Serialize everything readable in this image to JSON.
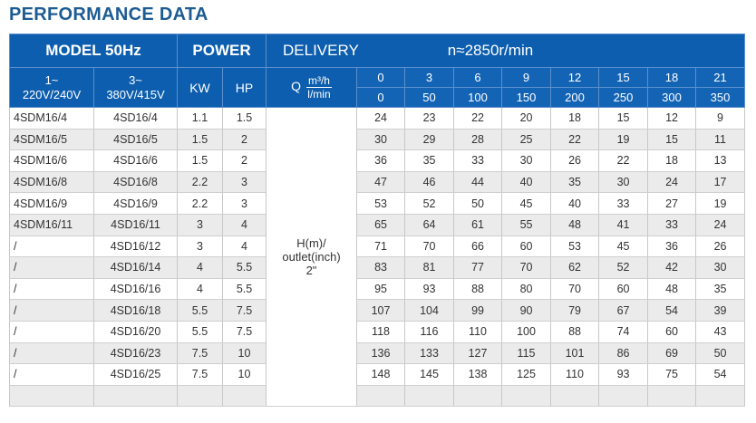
{
  "title": "PERFORMANCE DATA",
  "header": {
    "model": "MODEL 50Hz",
    "power": "POWER",
    "delivery": "DELIVERY",
    "speed": "n≈2850r/min",
    "single_phase_1": "1~",
    "single_phase_2": "220V/240V",
    "three_phase_1": "3~",
    "three_phase_2": "380V/415V",
    "kw": "KW",
    "hp": "HP",
    "q": "Q",
    "unit_m3h": "m³/h",
    "unit_lmin": "l/min",
    "flow_m3h": [
      "0",
      "3",
      "6",
      "9",
      "12",
      "15",
      "18",
      "21"
    ],
    "flow_lmin": [
      "0",
      "50",
      "100",
      "150",
      "200",
      "250",
      "300",
      "350"
    ]
  },
  "head_label": {
    "line1": "H(m)/",
    "line2": "outlet(inch)",
    "line3": "2\""
  },
  "rows": [
    {
      "m1": "4SDM16/4",
      "m2": "4SD16/4",
      "kw": "1.1",
      "hp": "1.5",
      "h": [
        "24",
        "23",
        "22",
        "20",
        "18",
        "15",
        "12",
        "9"
      ]
    },
    {
      "m1": "4SDM16/5",
      "m2": "4SD16/5",
      "kw": "1.5",
      "hp": "2",
      "h": [
        "30",
        "29",
        "28",
        "25",
        "22",
        "19",
        "15",
        "11"
      ]
    },
    {
      "m1": "4SDM16/6",
      "m2": "4SD16/6",
      "kw": "1.5",
      "hp": "2",
      "h": [
        "36",
        "35",
        "33",
        "30",
        "26",
        "22",
        "18",
        "13"
      ]
    },
    {
      "m1": "4SDM16/8",
      "m2": "4SD16/8",
      "kw": "2.2",
      "hp": "3",
      "h": [
        "47",
        "46",
        "44",
        "40",
        "35",
        "30",
        "24",
        "17"
      ]
    },
    {
      "m1": "4SDM16/9",
      "m2": "4SD16/9",
      "kw": "2.2",
      "hp": "3",
      "h": [
        "53",
        "52",
        "50",
        "45",
        "40",
        "33",
        "27",
        "19"
      ]
    },
    {
      "m1": "4SDM16/11",
      "m2": "4SD16/11",
      "kw": "3",
      "hp": "4",
      "h": [
        "65",
        "64",
        "61",
        "55",
        "48",
        "41",
        "33",
        "24"
      ]
    },
    {
      "m1": "/",
      "m2": "4SD16/12",
      "kw": "3",
      "hp": "4",
      "h": [
        "71",
        "70",
        "66",
        "60",
        "53",
        "45",
        "36",
        "26"
      ]
    },
    {
      "m1": "/",
      "m2": "4SD16/14",
      "kw": "4",
      "hp": "5.5",
      "h": [
        "83",
        "81",
        "77",
        "70",
        "62",
        "52",
        "42",
        "30"
      ]
    },
    {
      "m1": "/",
      "m2": "4SD16/16",
      "kw": "4",
      "hp": "5.5",
      "h": [
        "95",
        "93",
        "88",
        "80",
        "70",
        "60",
        "48",
        "35"
      ]
    },
    {
      "m1": "/",
      "m2": "4SD16/18",
      "kw": "5.5",
      "hp": "7.5",
      "h": [
        "107",
        "104",
        "99",
        "90",
        "79",
        "67",
        "54",
        "39"
      ]
    },
    {
      "m1": "/",
      "m2": "4SD16/20",
      "kw": "5.5",
      "hp": "7.5",
      "h": [
        "118",
        "116",
        "110",
        "100",
        "88",
        "74",
        "60",
        "43"
      ]
    },
    {
      "m1": "/",
      "m2": "4SD16/23",
      "kw": "7.5",
      "hp": "10",
      "h": [
        "136",
        "133",
        "127",
        "115",
        "101",
        "86",
        "69",
        "50"
      ]
    },
    {
      "m1": "/",
      "m2": "4SD16/25",
      "kw": "7.5",
      "hp": "10",
      "h": [
        "148",
        "145",
        "138",
        "125",
        "110",
        "93",
        "75",
        "54"
      ]
    },
    {
      "m1": "",
      "m2": "",
      "kw": "",
      "hp": "",
      "h": [
        "",
        "",
        "",
        "",
        "",
        "",
        "",
        ""
      ]
    }
  ],
  "colors": {
    "header_blue": "#0d5eae",
    "title_blue": "#1d5b93",
    "stripe": "#ebebeb"
  }
}
